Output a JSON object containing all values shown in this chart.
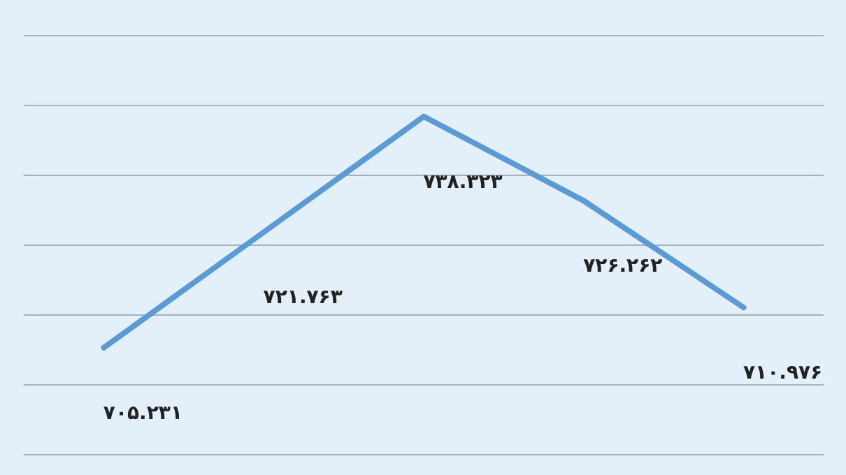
{
  "chart_data": {
    "type": "line",
    "categories": [
      null,
      null,
      null,
      null,
      null
    ],
    "series": [
      {
        "color": "#5b9bd5",
        "values": [
          705.231,
          721.763,
          738.323,
          726.262,
          710.976
        ],
        "value_labels": [
          "۷۰۵.۲۳۱",
          "۷۲۱.۷۶۳",
          "۷۳۸.۳۲۳",
          "۷۲۶.۲۶۲",
          "۷۱۰.۹۷۶"
        ]
      }
    ],
    "ylim": [
      687,
      755
    ],
    "yticks": [
      {
        "value": 690,
        "label": null
      },
      {
        "value": 700,
        "label": null
      },
      {
        "value": 710,
        "label": null
      },
      {
        "value": 720,
        "label": null
      },
      {
        "value": 730,
        "label": null
      },
      {
        "value": 740,
        "label": null
      },
      {
        "value": 750,
        "label": null
      }
    ],
    "grid": "y",
    "tick_labels": false,
    "marker": "none",
    "line_style": "solid"
  }
}
